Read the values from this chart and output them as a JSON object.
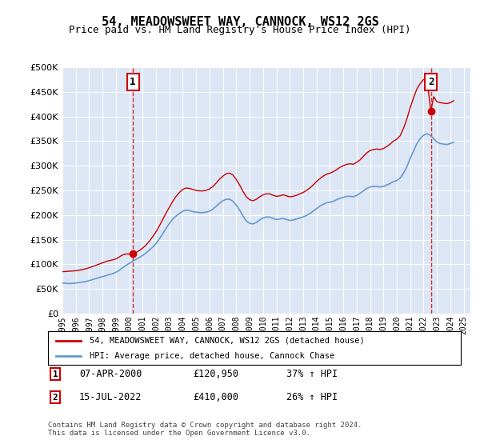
{
  "title": "54, MEADOWSWEET WAY, CANNOCK, WS12 2GS",
  "subtitle": "Price paid vs. HM Land Registry's House Price Index (HPI)",
  "ylabel_ticks": [
    "£0",
    "£50K",
    "£100K",
    "£150K",
    "£200K",
    "£250K",
    "£300K",
    "£350K",
    "£400K",
    "£450K",
    "£500K"
  ],
  "ytick_values": [
    0,
    50000,
    100000,
    150000,
    200000,
    250000,
    300000,
    350000,
    400000,
    450000,
    500000
  ],
  "ylim": [
    0,
    500000
  ],
  "xlim_start": 1995.0,
  "xlim_end": 2025.5,
  "background_color": "#dce6f5",
  "plot_bg_color": "#dce6f5",
  "grid_color": "#ffffff",
  "red_line_color": "#cc0000",
  "blue_line_color": "#6699cc",
  "legend_label_red": "54, MEADOWSWEET WAY, CANNOCK, WS12 2GS (detached house)",
  "legend_label_blue": "HPI: Average price, detached house, Cannock Chase",
  "sale1_date": "07-APR-2000",
  "sale1_price": 120950,
  "sale1_pct": "37%",
  "sale1_year": 2000.27,
  "sale2_date": "15-JUL-2022",
  "sale2_price": 410000,
  "sale2_pct": "26%",
  "sale2_year": 2022.54,
  "footnote": "Contains HM Land Registry data © Crown copyright and database right 2024.\nThis data is licensed under the Open Government Licence v3.0.",
  "hpi_years": [
    1995.0,
    1995.25,
    1995.5,
    1995.75,
    1996.0,
    1996.25,
    1996.5,
    1996.75,
    1997.0,
    1997.25,
    1997.5,
    1997.75,
    1998.0,
    1998.25,
    1998.5,
    1998.75,
    1999.0,
    1999.25,
    1999.5,
    1999.75,
    2000.0,
    2000.25,
    2000.5,
    2000.75,
    2001.0,
    2001.25,
    2001.5,
    2001.75,
    2002.0,
    2002.25,
    2002.5,
    2002.75,
    2003.0,
    2003.25,
    2003.5,
    2003.75,
    2004.0,
    2004.25,
    2004.5,
    2004.75,
    2005.0,
    2005.25,
    2005.5,
    2005.75,
    2006.0,
    2006.25,
    2006.5,
    2006.75,
    2007.0,
    2007.25,
    2007.5,
    2007.75,
    2008.0,
    2008.25,
    2008.5,
    2008.75,
    2009.0,
    2009.25,
    2009.5,
    2009.75,
    2010.0,
    2010.25,
    2010.5,
    2010.75,
    2011.0,
    2011.25,
    2011.5,
    2011.75,
    2012.0,
    2012.25,
    2012.5,
    2012.75,
    2013.0,
    2013.25,
    2013.5,
    2013.75,
    2014.0,
    2014.25,
    2014.5,
    2014.75,
    2015.0,
    2015.25,
    2015.5,
    2015.75,
    2016.0,
    2016.25,
    2016.5,
    2016.75,
    2017.0,
    2017.25,
    2017.5,
    2017.75,
    2018.0,
    2018.25,
    2018.5,
    2018.75,
    2019.0,
    2019.25,
    2019.5,
    2019.75,
    2020.0,
    2020.25,
    2020.5,
    2020.75,
    2021.0,
    2021.25,
    2021.5,
    2021.75,
    2022.0,
    2022.25,
    2022.5,
    2022.75,
    2023.0,
    2023.25,
    2023.5,
    2023.75,
    2024.0,
    2024.25
  ],
  "hpi_values": [
    62000,
    61500,
    61000,
    61500,
    62000,
    63000,
    64000,
    65000,
    67000,
    69000,
    71000,
    73000,
    75000,
    77000,
    79000,
    81000,
    84000,
    88000,
    93000,
    98000,
    102000,
    106000,
    110000,
    114000,
    118000,
    123000,
    129000,
    135000,
    142000,
    152000,
    162000,
    173000,
    183000,
    192000,
    198000,
    203000,
    208000,
    210000,
    209000,
    207000,
    206000,
    205000,
    205000,
    206000,
    208000,
    212000,
    218000,
    224000,
    229000,
    232000,
    232000,
    228000,
    220000,
    210000,
    198000,
    188000,
    183000,
    182000,
    185000,
    190000,
    194000,
    196000,
    196000,
    193000,
    191000,
    192000,
    193000,
    191000,
    189000,
    190000,
    192000,
    194000,
    196000,
    199000,
    203000,
    208000,
    213000,
    218000,
    222000,
    225000,
    226000,
    228000,
    231000,
    234000,
    236000,
    238000,
    238000,
    237000,
    240000,
    244000,
    249000,
    254000,
    257000,
    258000,
    258000,
    257000,
    258000,
    261000,
    264000,
    268000,
    270000,
    275000,
    285000,
    298000,
    315000,
    330000,
    345000,
    355000,
    362000,
    365000,
    362000,
    355000,
    348000,
    345000,
    344000,
    343000,
    345000,
    348000
  ],
  "red_years": [
    1995.0,
    1995.25,
    1995.5,
    1995.75,
    1996.0,
    1996.25,
    1996.5,
    1996.75,
    1997.0,
    1997.25,
    1997.5,
    1997.75,
    1998.0,
    1998.25,
    1998.5,
    1998.75,
    1999.0,
    1999.25,
    1999.5,
    1999.75,
    2000.0,
    2000.27,
    2000.5,
    2000.75,
    2001.0,
    2001.25,
    2001.5,
    2001.75,
    2002.0,
    2002.25,
    2002.5,
    2002.75,
    2003.0,
    2003.25,
    2003.5,
    2003.75,
    2004.0,
    2004.25,
    2004.5,
    2004.75,
    2005.0,
    2005.25,
    2005.5,
    2005.75,
    2006.0,
    2006.25,
    2006.5,
    2006.75,
    2007.0,
    2007.25,
    2007.5,
    2007.75,
    2008.0,
    2008.25,
    2008.5,
    2008.75,
    2009.0,
    2009.25,
    2009.5,
    2009.75,
    2010.0,
    2010.25,
    2010.5,
    2010.75,
    2011.0,
    2011.25,
    2011.5,
    2011.75,
    2012.0,
    2012.25,
    2012.5,
    2012.75,
    2013.0,
    2013.25,
    2013.5,
    2013.75,
    2014.0,
    2014.25,
    2014.5,
    2014.75,
    2015.0,
    2015.25,
    2015.5,
    2015.75,
    2016.0,
    2016.25,
    2016.5,
    2016.75,
    2017.0,
    2017.25,
    2017.5,
    2017.75,
    2018.0,
    2018.25,
    2018.5,
    2018.75,
    2019.0,
    2019.25,
    2019.5,
    2019.75,
    2020.0,
    2020.25,
    2020.5,
    2020.75,
    2021.0,
    2021.25,
    2021.5,
    2021.75,
    2022.0,
    2022.25,
    2022.54,
    2022.75,
    2023.0,
    2023.25,
    2023.5,
    2023.75,
    2024.0,
    2024.25
  ],
  "red_values": [
    85000,
    85500,
    86000,
    86500,
    87000,
    88000,
    89500,
    91000,
    93000,
    95500,
    98000,
    100500,
    103000,
    105500,
    107500,
    109000,
    111000,
    115000,
    119000,
    121000,
    120950,
    120950,
    124000,
    128000,
    133000,
    139000,
    147000,
    156000,
    166000,
    178000,
    191000,
    204000,
    216000,
    228000,
    238000,
    246000,
    252000,
    255000,
    254000,
    252000,
    250000,
    249000,
    249000,
    250000,
    253000,
    258000,
    265000,
    273000,
    279000,
    284000,
    285000,
    281000,
    272000,
    261000,
    248000,
    237000,
    231000,
    229000,
    232000,
    237000,
    241000,
    243000,
    243000,
    240000,
    238000,
    239000,
    241000,
    239000,
    237000,
    238000,
    240000,
    243000,
    246000,
    250000,
    255000,
    261000,
    268000,
    274000,
    279000,
    283000,
    285000,
    288000,
    292000,
    297000,
    300000,
    303000,
    304000,
    303000,
    307000,
    312000,
    319000,
    326000,
    331000,
    333000,
    334000,
    333000,
    335000,
    339000,
    344000,
    350000,
    354000,
    361000,
    376000,
    395000,
    418000,
    438000,
    456000,
    467000,
    475000,
    478000,
    410000,
    440000,
    430000,
    428000,
    427000,
    426000,
    428000,
    432000
  ]
}
